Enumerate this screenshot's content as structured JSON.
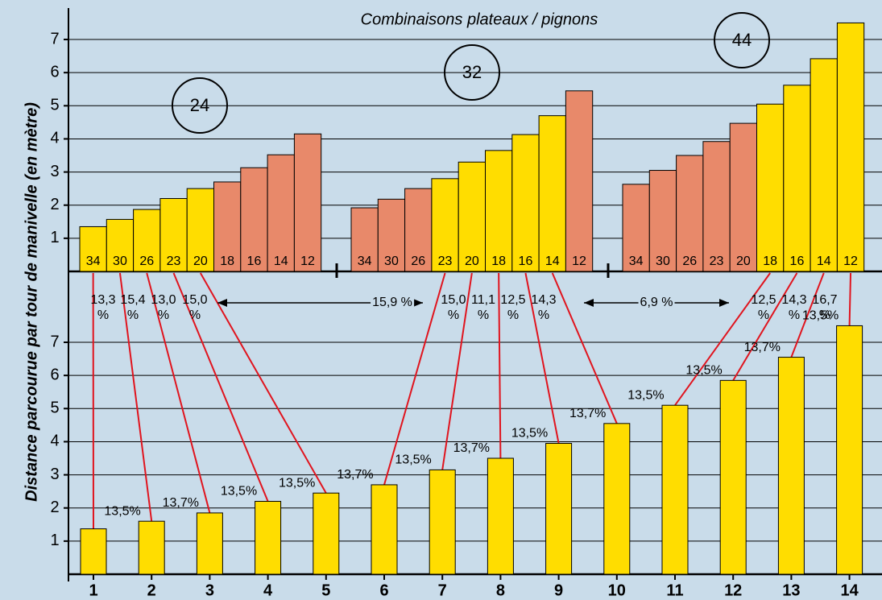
{
  "chart_data": [
    {
      "type": "bar",
      "title": "Combinaisons plateaux / pignons",
      "categories": [
        34,
        30,
        26,
        23,
        20,
        18,
        16,
        14,
        12
      ],
      "series": [
        {
          "name": "24",
          "values": [
            1.35,
            1.57,
            1.87,
            2.2,
            2.5,
            2.7,
            3.13,
            3.52,
            4.15
          ],
          "colors": [
            "#ffdd00",
            "#ffdd00",
            "#ffdd00",
            "#ffdd00",
            "#ffdd00",
            "#e8896a",
            "#e8896a",
            "#e8896a",
            "#e8896a"
          ]
        },
        {
          "name": "32",
          "values": [
            1.92,
            2.18,
            2.5,
            2.8,
            3.3,
            3.65,
            4.13,
            4.7,
            5.45
          ],
          "colors": [
            "#e8896a",
            "#e8896a",
            "#e8896a",
            "#ffdd00",
            "#ffdd00",
            "#ffdd00",
            "#ffdd00",
            "#ffdd00",
            "#e8896a"
          ]
        },
        {
          "name": "44",
          "values": [
            2.63,
            3.05,
            3.5,
            3.92,
            4.47,
            5.05,
            5.62,
            6.42,
            7.5
          ],
          "colors": [
            "#e8896a",
            "#e8896a",
            "#e8896a",
            "#e8896a",
            "#e8896a",
            "#ffdd00",
            "#ffdd00",
            "#ffdd00",
            "#ffdd00"
          ]
        }
      ],
      "ylim": [
        0,
        7.9
      ],
      "yticks": [
        1,
        2,
        3,
        4,
        5,
        6,
        7
      ],
      "grid": true,
      "annotations": [
        "13,3 %",
        "15,4 %",
        "13,0 %",
        "15,0 %",
        "15,9 %",
        "15,0 %",
        "11,1 %",
        "12,5 %",
        "14,3 %",
        "6,9 %",
        "12,5 %",
        "14,3 %",
        "16,7 %"
      ]
    },
    {
      "type": "bar",
      "ylabel": "Distance parcourue par tour de manivelle (en mètre)",
      "categories": [
        1,
        2,
        3,
        4,
        5,
        6,
        7,
        8,
        9,
        10,
        11,
        12,
        13,
        14
      ],
      "values": [
        1.37,
        1.6,
        1.85,
        2.2,
        2.45,
        2.7,
        3.15,
        3.5,
        3.95,
        4.55,
        5.1,
        5.85,
        6.55,
        7.5
      ],
      "color": "#ffdd00",
      "step_labels": [
        "13,5%",
        "13,7%",
        "13,5%",
        "13,5%",
        "13,7%",
        "13,5%",
        "13,7%",
        "13,5%",
        "13,7%",
        "13,5%",
        "13,5%",
        "13,7%",
        "13,5%"
      ],
      "ylim": [
        0,
        7.9
      ],
      "yticks": [
        1,
        2,
        3,
        4,
        5,
        6,
        7
      ],
      "grid": true
    }
  ]
}
